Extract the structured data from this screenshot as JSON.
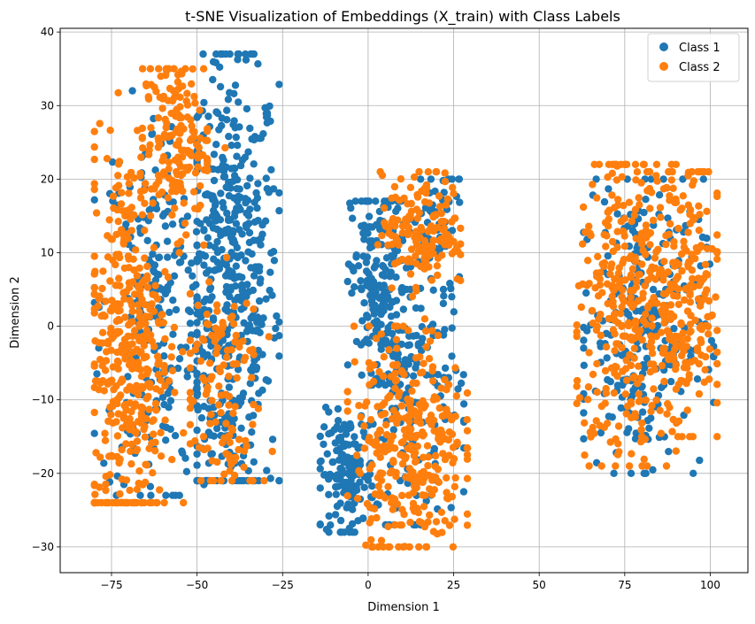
{
  "chart_data": {
    "type": "scatter",
    "title": "t-SNE Visualization of Embeddings (X_train) with Class Labels",
    "xlabel": "Dimension 1",
    "ylabel": "Dimension 2",
    "xlim": [
      -90,
      111
    ],
    "ylim": [
      -33.5,
      40.5
    ],
    "xticks": [
      -75,
      -50,
      -25,
      0,
      25,
      50,
      75,
      100
    ],
    "xtick_labels": [
      "−75",
      "−50",
      "−25",
      "0",
      "25",
      "50",
      "75",
      "100"
    ],
    "yticks": [
      -30,
      -20,
      -10,
      0,
      10,
      20,
      30,
      40
    ],
    "ytick_labels": [
      "−30",
      "−20",
      "−10",
      "0",
      "10",
      "20",
      "30",
      "40"
    ],
    "grid": true,
    "legend_position": "top-right",
    "series": [
      {
        "name": "Class 1",
        "color": "#1f77b4",
        "clusters": [
          {
            "cx": -40,
            "cy": 5,
            "sx": 7,
            "sy": 16,
            "n": 520,
            "xmin": -50,
            "xmax": -26,
            "ymin": -21,
            "ymax": 37
          },
          {
            "cx": -62,
            "cy": 2,
            "sx": 8,
            "sy": 14,
            "n": 230,
            "xmin": -80,
            "xmax": -48,
            "ymin": -23,
            "ymax": 32
          },
          {
            "cx": 3,
            "cy": 5,
            "sx": 4,
            "sy": 8,
            "n": 200,
            "xmin": -7,
            "xmax": 13,
            "ymin": -8,
            "ymax": 17
          },
          {
            "cx": -6,
            "cy": -20,
            "sx": 4,
            "sy": 4,
            "n": 150,
            "xmin": -14,
            "xmax": 3,
            "ymin": -28,
            "ymax": -11
          },
          {
            "cx": 14,
            "cy": -10,
            "sx": 7,
            "sy": 9,
            "n": 150,
            "xmin": -2,
            "xmax": 28,
            "ymin": -27,
            "ymax": 5
          },
          {
            "cx": 20,
            "cy": 12,
            "sx": 4,
            "sy": 5,
            "n": 60,
            "xmin": 10,
            "xmax": 27,
            "ymin": 4,
            "ymax": 20
          },
          {
            "cx": 80,
            "cy": 0,
            "sx": 9,
            "sy": 10,
            "n": 260,
            "xmin": 63,
            "xmax": 101,
            "ymin": -20,
            "ymax": 20
          }
        ]
      },
      {
        "name": "Class 2",
        "color": "#ff7f0e",
        "clusters": [
          {
            "cx": -70,
            "cy": -3,
            "sx": 6,
            "sy": 14,
            "n": 430,
            "xmin": -80,
            "xmax": -54,
            "ymin": -24,
            "ymax": 33
          },
          {
            "cx": -56,
            "cy": 25,
            "sx": 5,
            "sy": 6,
            "n": 170,
            "xmin": -66,
            "xmax": -47,
            "ymin": 10,
            "ymax": 35
          },
          {
            "cx": -44,
            "cy": -8,
            "sx": 6,
            "sy": 9,
            "n": 130,
            "xmin": -52,
            "xmax": -28,
            "ymin": -21,
            "ymax": 35
          },
          {
            "cx": 16,
            "cy": 13,
            "sx": 6,
            "sy": 4,
            "n": 160,
            "xmin": 0,
            "xmax": 27,
            "ymin": 1,
            "ymax": 21
          },
          {
            "cx": 12,
            "cy": -16,
            "sx": 8,
            "sy": 8,
            "n": 330,
            "xmin": -6,
            "xmax": 29,
            "ymin": -30,
            "ymax": 0
          },
          {
            "cx": 75,
            "cy": 2,
            "sx": 7,
            "sy": 11,
            "n": 300,
            "xmin": 61,
            "xmax": 90,
            "ymin": -19,
            "ymax": 22
          },
          {
            "cx": 92,
            "cy": 4,
            "sx": 6,
            "sy": 10,
            "n": 240,
            "xmin": 80,
            "xmax": 102,
            "ymin": -15,
            "ymax": 21
          }
        ]
      }
    ]
  }
}
